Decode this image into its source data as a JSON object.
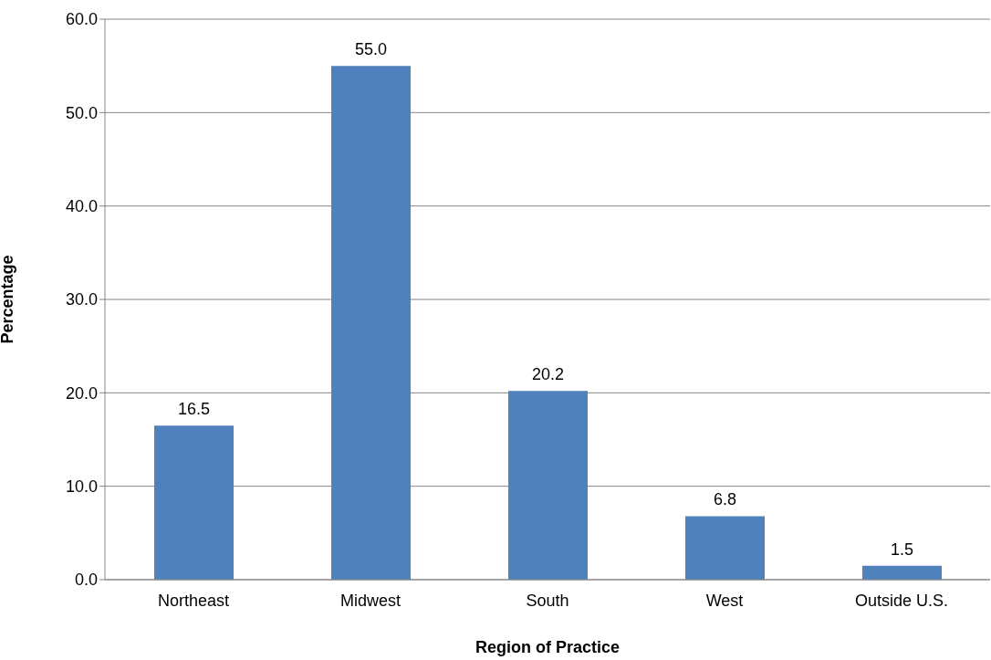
{
  "chart_data": {
    "type": "bar",
    "xlabel": "Region of Practice",
    "ylabel": "Percentage",
    "categories": [
      "Northeast",
      "Midwest",
      "South",
      "West",
      "Outside U.S."
    ],
    "values": [
      16.5,
      55.0,
      20.2,
      6.8,
      1.5
    ],
    "value_labels": [
      "16.5",
      "55.0",
      "20.2",
      "6.8",
      "1.5"
    ],
    "color": "#4f81bd",
    "ylim": [
      0,
      60
    ],
    "yticks": [
      {
        "value": 0,
        "label": "0.0"
      },
      {
        "value": 10,
        "label": "10.0"
      },
      {
        "value": 20,
        "label": "20.0"
      },
      {
        "value": 30,
        "label": "30.0"
      },
      {
        "value": 40,
        "label": "40.0"
      },
      {
        "value": 50,
        "label": "50.0"
      },
      {
        "value": 60,
        "label": "60.0"
      }
    ],
    "grid": "y"
  }
}
